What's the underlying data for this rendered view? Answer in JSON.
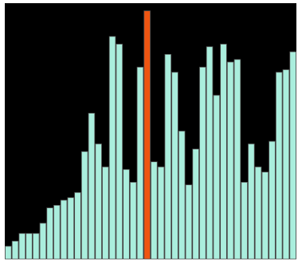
{
  "chart_data": {
    "type": "bar",
    "title": "",
    "xlabel": "",
    "ylabel": "",
    "ylim": [
      0,
      100
    ],
    "grid": false,
    "legend": "none",
    "background_color": "#000000",
    "bar_color": "#aaeedd",
    "bar_edge_color": "#555555",
    "highlight_color": "#ee5511",
    "highlight_index": 20,
    "values": [
      5,
      7,
      10,
      10,
      10,
      14,
      20,
      21,
      23,
      24,
      26,
      42,
      57,
      45,
      36,
      87,
      84,
      35,
      30,
      75,
      97,
      38,
      36,
      80,
      73,
      50,
      29,
      43,
      75,
      83,
      64,
      84,
      77,
      78,
      30,
      45,
      36,
      34,
      46,
      73,
      74,
      81
    ]
  }
}
